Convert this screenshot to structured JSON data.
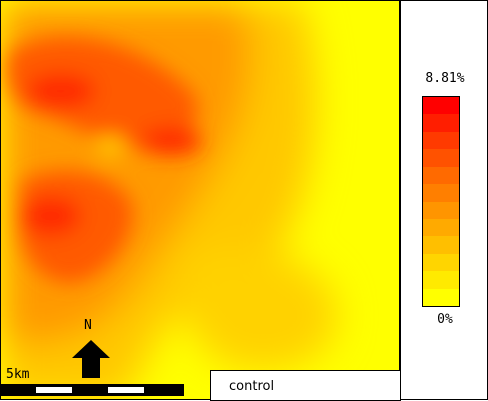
{
  "legend": {
    "max_label": "8.81%",
    "min_label": "0%",
    "colors": [
      "#ff0000",
      "#ff1e00",
      "#ff3a00",
      "#ff5200",
      "#ff6a00",
      "#ff7f00",
      "#ff9500",
      "#ffaa00",
      "#ffbf00",
      "#ffd500",
      "#ffea00",
      "#ffff00"
    ]
  },
  "scale": {
    "label": "5km"
  },
  "north": {
    "label": "N"
  },
  "scenario": {
    "label": "control"
  },
  "map_colors": {
    "low": "#ffff00",
    "mid": "#ffc800",
    "orange": "#ff9a00",
    "high": "#ff5a00",
    "peak": "#ff2a00"
  }
}
